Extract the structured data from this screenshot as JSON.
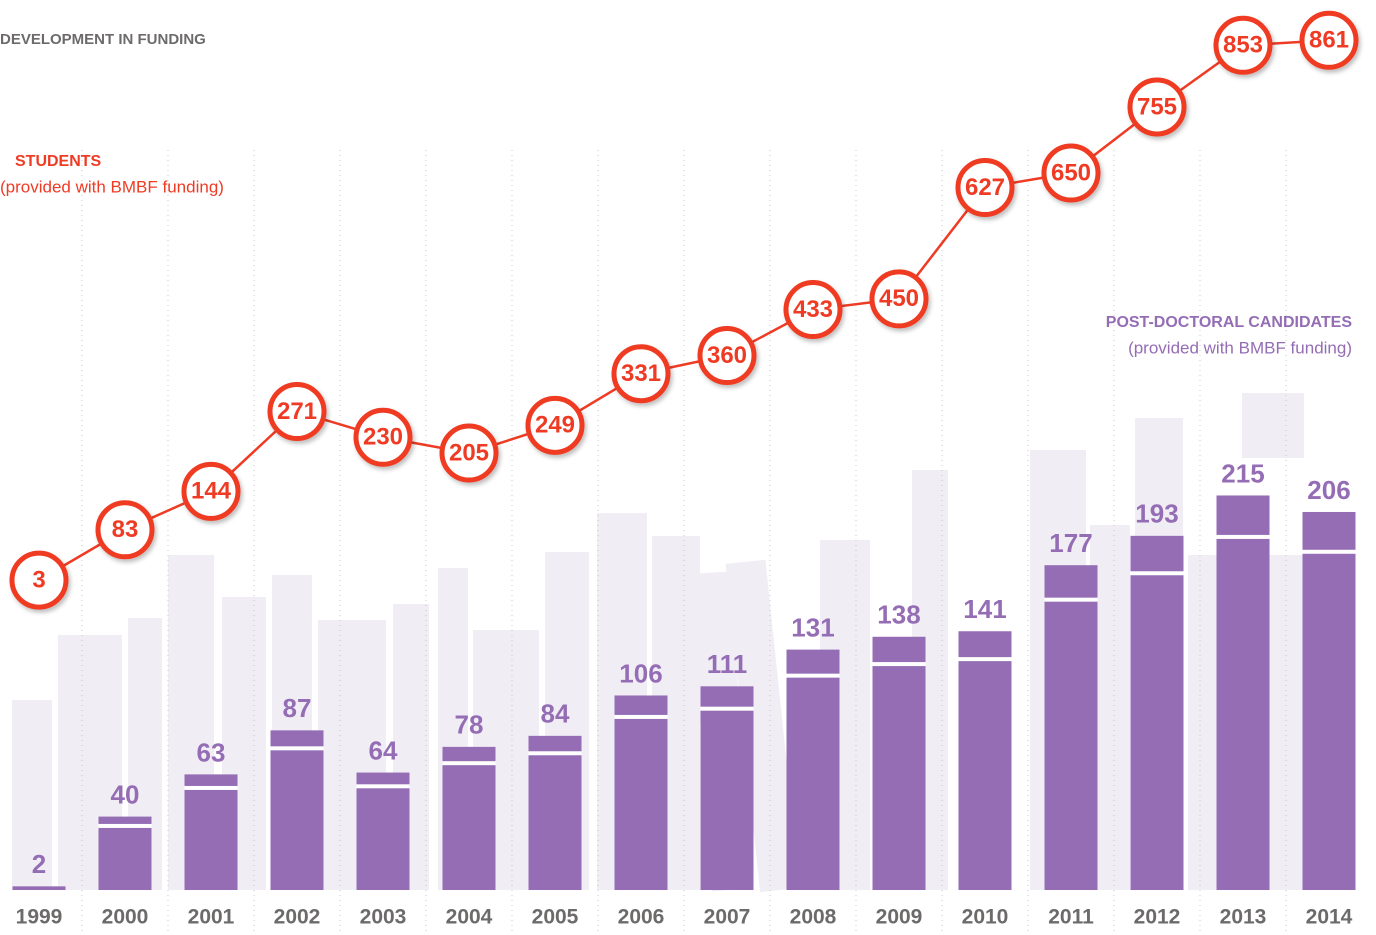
{
  "chart_data": {
    "type": "bar",
    "title": "DEVELOPMENT IN FUNDING",
    "categories": [
      "1999",
      "2000",
      "2001",
      "2002",
      "2003",
      "2004",
      "2005",
      "2006",
      "2007",
      "2008",
      "2009",
      "2010",
      "2011",
      "2012",
      "2013",
      "2014"
    ],
    "ylim": [
      0,
      485
    ],
    "y2lim": [
      0,
      925
    ],
    "series": [
      {
        "name": "POST-DOCTORAL CANDIDATES",
        "subtitle": "(provided with BMBF funding)",
        "type": "bar",
        "color": "#946db5",
        "values": [
          2,
          40,
          63,
          87,
          64,
          78,
          84,
          106,
          111,
          131,
          138,
          141,
          177,
          193,
          215,
          206
        ]
      },
      {
        "name": "STUDENTS",
        "subtitle": "(provided with BMBF funding)",
        "type": "line",
        "axis": "y2",
        "color": "#ef3b24",
        "values": [
          3,
          83,
          144,
          271,
          230,
          205,
          249,
          331,
          360,
          433,
          450,
          627,
          650,
          755,
          853,
          861
        ]
      }
    ]
  }
}
